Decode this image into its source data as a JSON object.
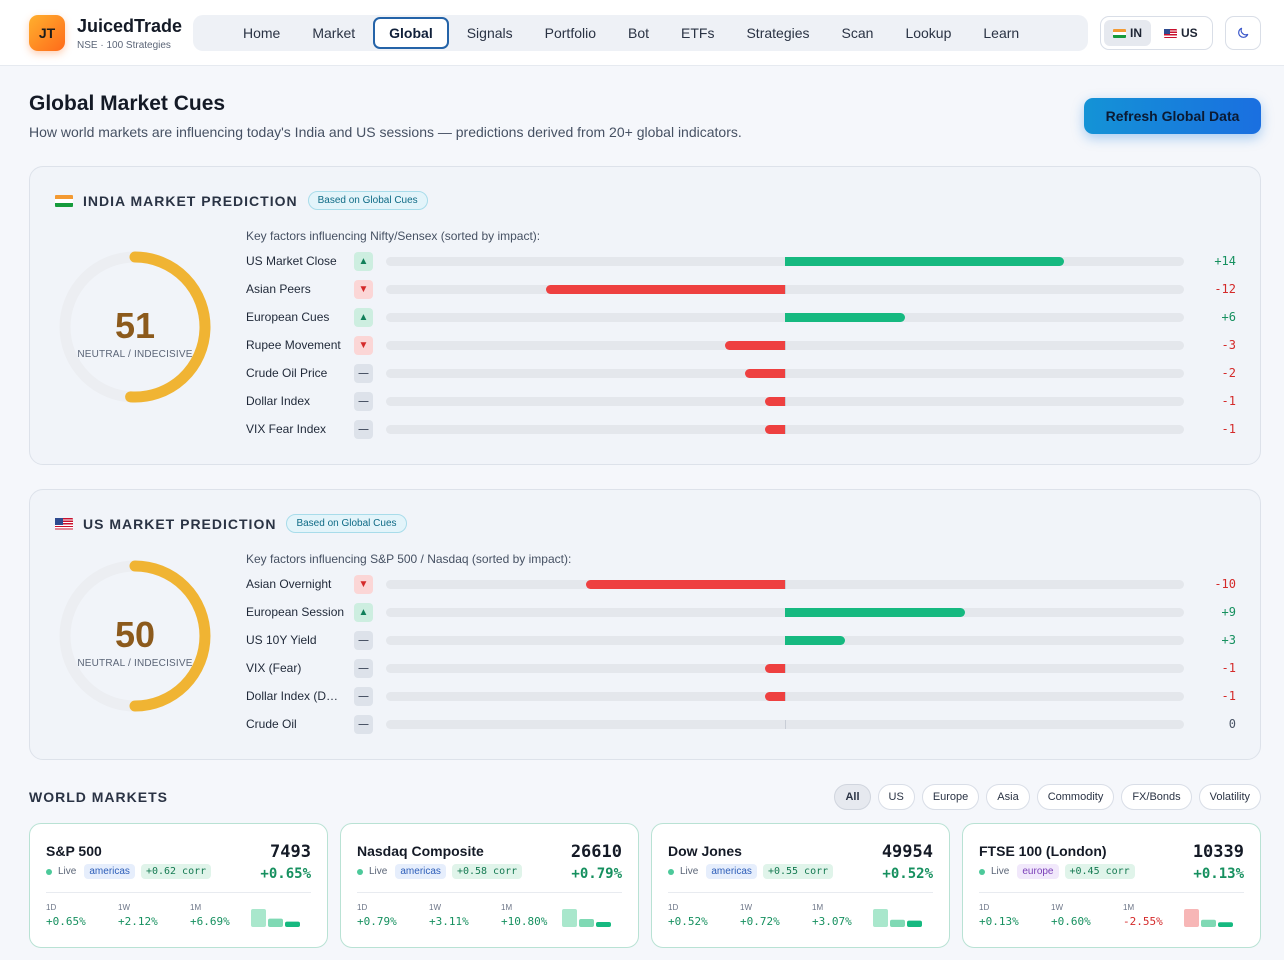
{
  "header": {
    "logo_text": "JT",
    "brand_name": "JuicedTrade",
    "brand_sub": "NSE · 100 Strategies",
    "nav": [
      "Home",
      "Market",
      "Global",
      "Signals",
      "Portfolio",
      "Bot",
      "ETFs",
      "Strategies",
      "Scan",
      "Lookup",
      "Learn"
    ],
    "active_nav": "Global",
    "market_toggle": {
      "in_label": "IN",
      "us_label": "US",
      "active": "IN"
    },
    "theme_icon": "moon-icon"
  },
  "page": {
    "title": "Global Market Cues",
    "subtitle": "How world markets are influencing today's India and US sessions — predictions derived from 20+ global indicators.",
    "refresh_label": "Refresh Global Data"
  },
  "india": {
    "title": "INDIA MARKET PREDICTION",
    "badge": "Based on Global Cues",
    "score": "51",
    "score_value": 51,
    "label": "NEUTRAL / INDECISIVE",
    "caption": "Key factors influencing Nifty/Sensex (sorted by impact):",
    "factors": [
      {
        "name": "US Market Close",
        "dir": "up",
        "value": 14,
        "display": "+14"
      },
      {
        "name": "Asian Peers",
        "dir": "down",
        "value": -12,
        "display": "-12"
      },
      {
        "name": "European Cues",
        "dir": "up",
        "value": 6,
        "display": "+6"
      },
      {
        "name": "Rupee Movement",
        "dir": "down",
        "value": -3,
        "display": "-3"
      },
      {
        "name": "Crude Oil Price",
        "dir": "flat",
        "value": -2,
        "display": "-2"
      },
      {
        "name": "Dollar Index",
        "dir": "flat",
        "value": -1,
        "display": "-1"
      },
      {
        "name": "VIX Fear Index",
        "dir": "flat",
        "value": -1,
        "display": "-1"
      }
    ]
  },
  "us": {
    "title": "US MARKET PREDICTION",
    "badge": "Based on Global Cues",
    "score": "50",
    "score_value": 50,
    "label": "NEUTRAL / INDECISIVE",
    "caption": "Key factors influencing S&P 500 / Nasdaq (sorted by impact):",
    "factors": [
      {
        "name": "Asian Overnight",
        "dir": "down",
        "value": -10,
        "display": "-10"
      },
      {
        "name": "European Session",
        "dir": "up",
        "value": 9,
        "display": "+9"
      },
      {
        "name": "US 10Y Yield",
        "dir": "flat",
        "value": 3,
        "display": "+3"
      },
      {
        "name": "VIX (Fear)",
        "dir": "flat",
        "value": -1,
        "display": "-1"
      },
      {
        "name": "Dollar Index (DXY)",
        "dir": "flat",
        "value": -1,
        "display": "-1"
      },
      {
        "name": "Crude Oil",
        "dir": "flat",
        "value": 0,
        "display": "0"
      }
    ]
  },
  "world": {
    "title": "WORLD MARKETS",
    "filters": [
      "All",
      "US",
      "Europe",
      "Asia",
      "Commodity",
      "FX/Bonds",
      "Volatility"
    ],
    "active_filter": "All",
    "period_labels": [
      "1D",
      "1W",
      "1M"
    ],
    "cards": [
      {
        "name": "S&P 500",
        "price": "7493",
        "change": "+0.65%",
        "live": "Live",
        "region": "americas",
        "corr": "+0.62 corr",
        "periods": [
          "+0.65%",
          "+2.12%",
          "+6.69%"
        ]
      },
      {
        "name": "Nasdaq Composite",
        "price": "26610",
        "change": "+0.79%",
        "live": "Live",
        "region": "americas",
        "corr": "+0.58 corr",
        "periods": [
          "+0.79%",
          "+3.11%",
          "+10.80%"
        ]
      },
      {
        "name": "Dow Jones",
        "price": "49954",
        "change": "+0.52%",
        "live": "Live",
        "region": "americas",
        "corr": "+0.55 corr",
        "periods": [
          "+0.52%",
          "+0.72%",
          "+3.07%"
        ]
      },
      {
        "name": "FTSE 100 (London)",
        "price": "10339",
        "change": "+0.13%",
        "live": "Live",
        "region": "europe",
        "corr": "+0.45 corr",
        "periods": [
          "+0.13%",
          "+0.60%",
          "-2.55%"
        ]
      }
    ]
  },
  "colors": {
    "positive": "#16b980",
    "negative": "#ee4040",
    "gauge": "#f0b433",
    "accent": "#1a6fe0"
  }
}
